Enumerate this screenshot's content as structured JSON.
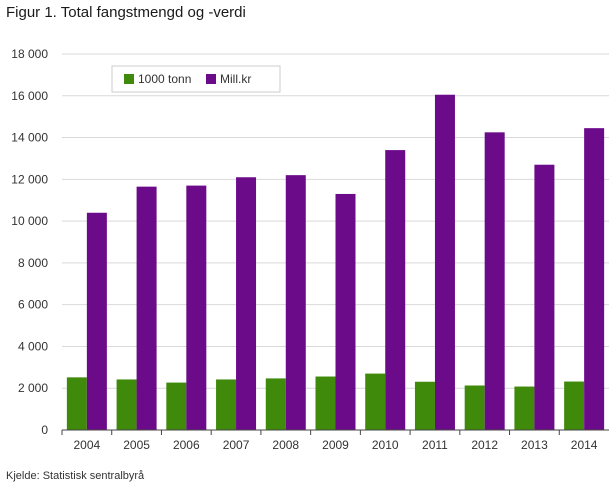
{
  "title": "Figur 1. Total fangstmengd og -verdi",
  "source": "Kjelde: Statistisk sentralbyrå",
  "chart_data": {
    "type": "bar",
    "title": "Figur 1. Total fangstmengd og -verdi",
    "xlabel": "",
    "ylabel": "",
    "categories": [
      "2004",
      "2005",
      "2006",
      "2007",
      "2008",
      "2009",
      "2010",
      "2011",
      "2012",
      "2013",
      "2014"
    ],
    "series": [
      {
        "name": "1000 tonn",
        "color": "#3f8a0b",
        "values": [
          2520,
          2420,
          2270,
          2420,
          2470,
          2560,
          2700,
          2310,
          2130,
          2080,
          2320
        ]
      },
      {
        "name": "Mill.kr",
        "color": "#6b0b8a",
        "values": [
          10400,
          11650,
          11700,
          12100,
          12200,
          11300,
          13400,
          16050,
          14250,
          12700,
          14450
        ]
      }
    ],
    "ylim": [
      0,
      18000
    ],
    "yticks": [
      0,
      2000,
      4000,
      6000,
      8000,
      10000,
      12000,
      14000,
      16000,
      18000
    ],
    "ytick_labels": [
      "0",
      "2 000",
      "4 000",
      "6 000",
      "8 000",
      "10 000",
      "12 000",
      "14 000",
      "16 000",
      "18 000"
    ],
    "grid": true,
    "legend_position": "top-left"
  }
}
